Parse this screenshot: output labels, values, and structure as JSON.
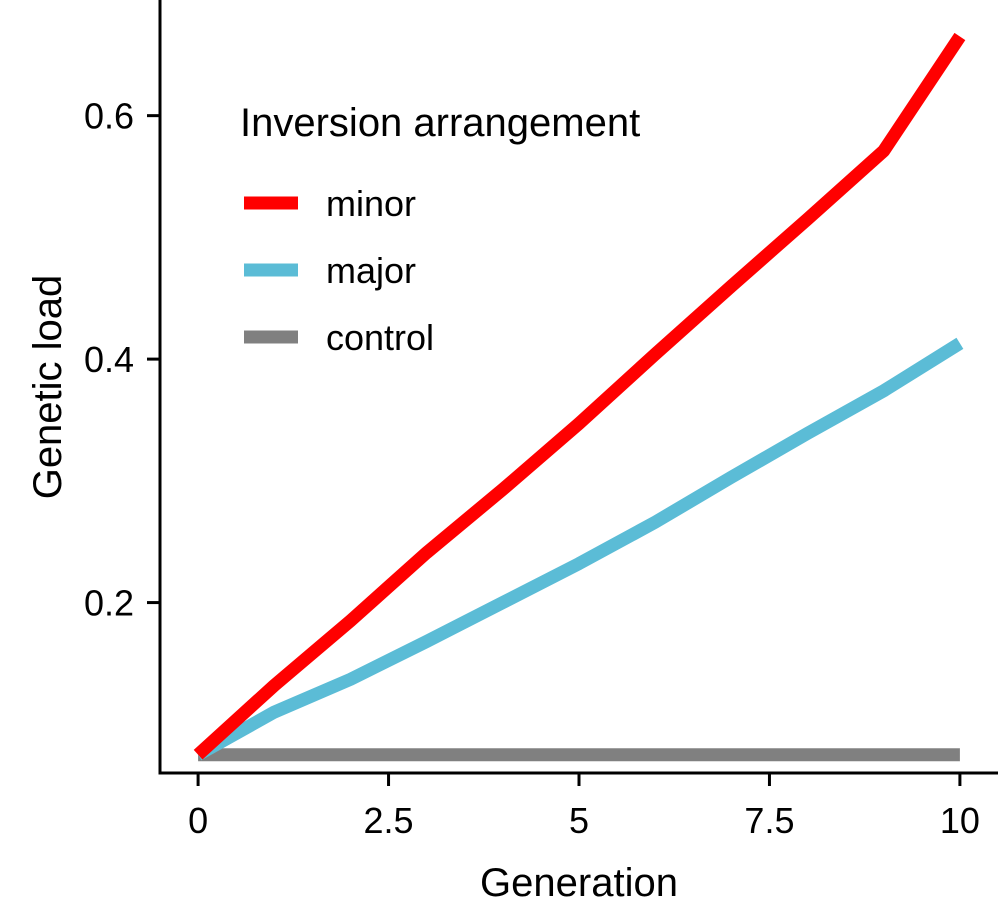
{
  "chart_data": {
    "type": "line",
    "title": "",
    "xlabel": "Generation",
    "ylabel": "Genetic load",
    "xlim": [
      -0.5,
      10.5
    ],
    "ylim": [
      0.06,
      0.695
    ],
    "x_ticks": [
      0,
      2.5,
      5,
      7.5,
      10
    ],
    "x_tick_labels": [
      "0",
      "2.5",
      "5",
      "7.5",
      "10"
    ],
    "y_ticks": [
      0.2,
      0.4,
      0.6
    ],
    "y_tick_labels": [
      "0.2",
      "0.4",
      "0.6"
    ],
    "grid": false,
    "legend": {
      "title": "Inversion arrangement",
      "placement": "top-left"
    },
    "x": [
      0,
      1,
      2,
      3,
      4,
      5,
      6,
      7,
      8,
      9,
      10
    ],
    "series": [
      {
        "name": "minor",
        "color": "#ff0000",
        "values": [
          0.075,
          0.132,
          0.185,
          0.241,
          0.293,
          0.347,
          0.404,
          0.46,
          0.515,
          0.571,
          0.665
        ]
      },
      {
        "name": "major",
        "color": "#5bbcd6",
        "values": [
          0.075,
          0.11,
          0.137,
          0.168,
          0.2,
          0.232,
          0.266,
          0.303,
          0.339,
          0.374,
          0.413
        ]
      },
      {
        "name": "control",
        "color": "#808080",
        "values": [
          0.075,
          0.075,
          0.075,
          0.075,
          0.075,
          0.075,
          0.075,
          0.075,
          0.075,
          0.075,
          0.075
        ]
      }
    ]
  }
}
